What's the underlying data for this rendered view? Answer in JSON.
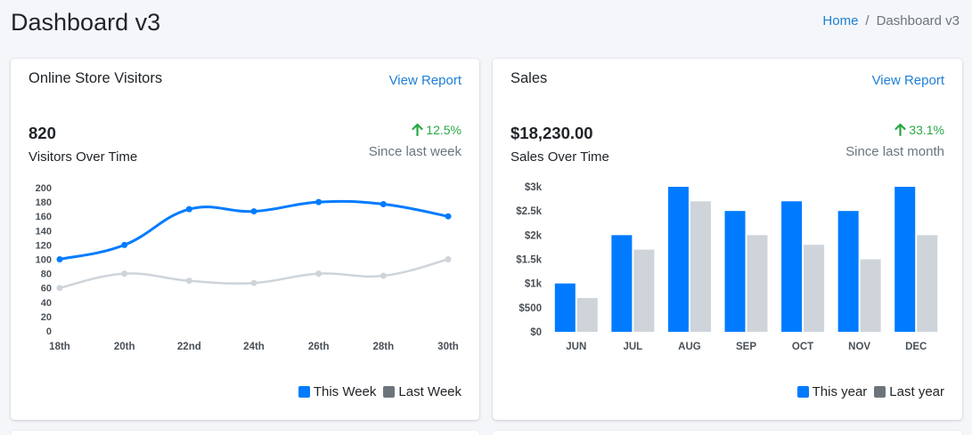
{
  "page": {
    "title": "Dashboard v3"
  },
  "breadcrumb": {
    "home": "Home",
    "separator": "/",
    "current": "Dashboard v3"
  },
  "visitors": {
    "title": "Online Store Visitors",
    "view_report": "View Report",
    "value": "820",
    "label": "Visitors Over Time",
    "change": "12.5%",
    "since": "Since last week",
    "legend": [
      {
        "label": "This Week",
        "color": "#007bff"
      },
      {
        "label": "Last Week",
        "color": "#6c757d"
      }
    ]
  },
  "sales": {
    "title": "Sales",
    "view_report": "View Report",
    "value": "$18,230.00",
    "label": "Sales Over Time",
    "change": "33.1%",
    "since": "Since last month",
    "legend": [
      {
        "label": "This year",
        "color": "#007bff"
      },
      {
        "label": "Last year",
        "color": "#6c757d"
      }
    ]
  },
  "chart_data": [
    {
      "type": "line",
      "categories": [
        "18th",
        "20th",
        "22nd",
        "24th",
        "26th",
        "28th",
        "30th"
      ],
      "yticks": [
        "200",
        "180",
        "160",
        "140",
        "120",
        "100",
        "80",
        "60",
        "40",
        "20",
        "0"
      ],
      "ylim": [
        0,
        200
      ],
      "series": [
        {
          "name": "This Week",
          "values": [
            100,
            120,
            170,
            167,
            180,
            177,
            160
          ],
          "color": "#007bff"
        },
        {
          "name": "Last Week",
          "values": [
            60,
            80,
            70,
            67,
            80,
            77,
            100
          ],
          "color": "#ced4da"
        }
      ],
      "grid": false,
      "legend": "bottom-right"
    },
    {
      "type": "bar",
      "categories": [
        "JUN",
        "JUL",
        "AUG",
        "SEP",
        "OCT",
        "NOV",
        "DEC"
      ],
      "yticks": [
        "$3k",
        "$2.5k",
        "$2k",
        "$1.5k",
        "$1k",
        "$500",
        "$0"
      ],
      "ylim": [
        0,
        3000
      ],
      "series": [
        {
          "name": "This year",
          "values": [
            1000,
            2000,
            3000,
            2500,
            2700,
            2500,
            3000
          ],
          "color": "#007bff"
        },
        {
          "name": "Last year",
          "values": [
            700,
            1700,
            2700,
            2000,
            1800,
            1500,
            2000
          ],
          "color": "#ced4da"
        }
      ],
      "grid": false,
      "legend": "bottom-right"
    }
  ]
}
